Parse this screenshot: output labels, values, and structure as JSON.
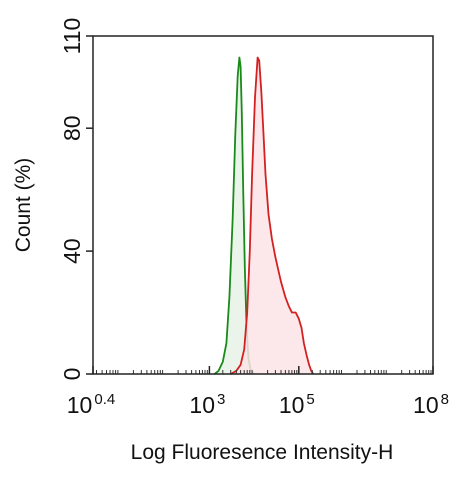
{
  "chart_data": {
    "type": "area",
    "title": "",
    "xlabel": "Log Fluoresence Intensity-H",
    "ylabel": "Count  (%)",
    "x_scale": "log",
    "xlim": [
      2.5,
      100000000
    ],
    "ylim": [
      0,
      110
    ],
    "x_ticks": [
      {
        "base": "10",
        "exp": "0.4",
        "value": 2.5
      },
      {
        "base": "10",
        "exp": "3",
        "value": 1000
      },
      {
        "base": "10",
        "exp": "5",
        "value": 100000
      },
      {
        "base": "10",
        "exp": "8",
        "value": 100000000
      }
    ],
    "y_ticks": [
      {
        "label": "0",
        "value": 0
      },
      {
        "label": "40",
        "value": 40
      },
      {
        "label": "80",
        "value": 80
      },
      {
        "label": "110",
        "value": 110
      }
    ],
    "grid": false,
    "series": [
      {
        "color": "#1a8a1a",
        "fill": "#e6f2e6",
        "points": [
          [
            1300,
            0
          ],
          [
            1600,
            1
          ],
          [
            2000,
            4
          ],
          [
            2400,
            10
          ],
          [
            2800,
            25
          ],
          [
            3300,
            50
          ],
          [
            3800,
            78
          ],
          [
            4300,
            97
          ],
          [
            4700,
            103
          ],
          [
            5000,
            100
          ],
          [
            5300,
            85
          ],
          [
            5700,
            60
          ],
          [
            6200,
            35
          ],
          [
            6800,
            15
          ],
          [
            7500,
            5
          ],
          [
            8500,
            1
          ],
          [
            10000,
            0
          ]
        ]
      },
      {
        "color": "#d42020",
        "fill": "#fbe3e6",
        "points": [
          [
            3000,
            0
          ],
          [
            4000,
            1
          ],
          [
            5000,
            3
          ],
          [
            6000,
            8
          ],
          [
            7000,
            20
          ],
          [
            8000,
            40
          ],
          [
            9000,
            65
          ],
          [
            10500,
            90
          ],
          [
            12000,
            103
          ],
          [
            13000,
            102
          ],
          [
            14500,
            92
          ],
          [
            16000,
            80
          ],
          [
            18000,
            65
          ],
          [
            21000,
            52
          ],
          [
            25000,
            44
          ],
          [
            30000,
            38
          ],
          [
            40000,
            30
          ],
          [
            50000,
            25
          ],
          [
            60000,
            22
          ],
          [
            70000,
            20
          ],
          [
            85000,
            20
          ],
          [
            100000,
            18
          ],
          [
            115000,
            15
          ],
          [
            130000,
            10
          ],
          [
            150000,
            6
          ],
          [
            170000,
            3
          ],
          [
            190000,
            1
          ],
          [
            210000,
            0
          ]
        ]
      }
    ]
  }
}
